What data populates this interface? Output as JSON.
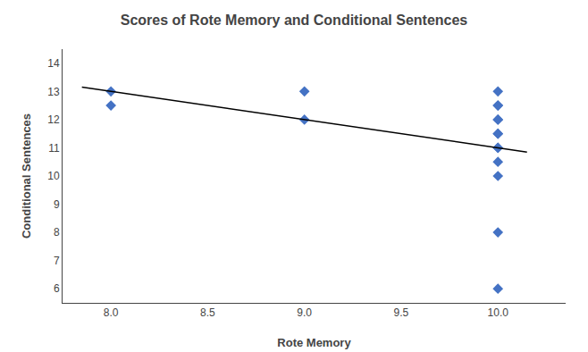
{
  "chart_data": {
    "type": "scatter",
    "title": "Scores of Rote Memory and Conditional Sentences",
    "xlabel": "Rote Memory",
    "ylabel": "Conditional Sentences",
    "series": [
      {
        "type": "scatter",
        "color": "#4472C4",
        "marker": "diamond",
        "x": [
          8,
          8,
          9,
          9,
          10,
          10,
          10,
          10,
          10,
          10,
          10,
          10,
          10,
          10,
          10,
          10,
          10
        ],
        "values": [
          13,
          12.5,
          13,
          12,
          13,
          12.5,
          12.5,
          12,
          12,
          11.5,
          11.5,
          11,
          11,
          10.5,
          10,
          8,
          6
        ]
      },
      {
        "type": "line",
        "color": "#000000",
        "line_style": "solid",
        "x": [
          7.85,
          10.15
        ],
        "values": [
          13.15,
          10.85
        ]
      }
    ],
    "xlim": [
      7.75,
      10.35
    ],
    "ylim": [
      5.5,
      14.5
    ],
    "xticks": [
      {
        "value": 8,
        "label": "8.0"
      },
      {
        "value": 8.5,
        "label": "8.5"
      },
      {
        "value": 9,
        "label": "9.0"
      },
      {
        "value": 9.5,
        "label": "9.5"
      },
      {
        "value": 10,
        "label": "10.0"
      }
    ],
    "yticks": [
      6,
      7,
      8,
      9,
      10,
      11,
      12,
      13,
      14
    ],
    "grid": false
  }
}
